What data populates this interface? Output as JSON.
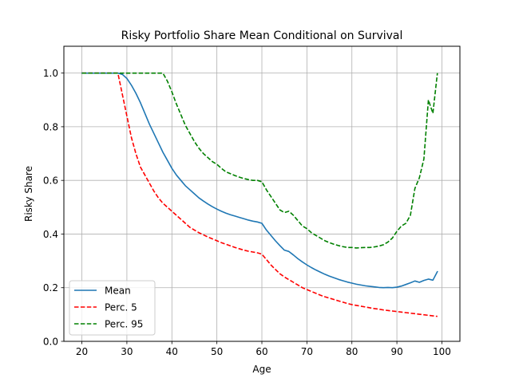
{
  "chart_data": {
    "type": "line",
    "title": "Risky Portfolio Share Mean Conditional on Survival",
    "xlabel": "Age",
    "ylabel": "Risky Share",
    "xlim": [
      16,
      104
    ],
    "ylim": [
      0.0,
      1.1
    ],
    "xticks": [
      20,
      30,
      40,
      50,
      60,
      70,
      80,
      90,
      100
    ],
    "yticks": [
      0.0,
      0.2,
      0.4,
      0.6,
      0.8,
      1.0
    ],
    "xtick_labels": [
      "20",
      "30",
      "40",
      "50",
      "60",
      "70",
      "80",
      "90",
      "100"
    ],
    "ytick_labels": [
      "0.0",
      "0.2",
      "0.4",
      "0.6",
      "0.8",
      "1.0"
    ],
    "grid": true,
    "legend_position": "lower-left",
    "series": [
      {
        "name": "Mean",
        "color": "#1f77b4",
        "style": "solid",
        "x": [
          20,
          21,
          22,
          23,
          24,
          25,
          26,
          27,
          28,
          29,
          30,
          31,
          32,
          33,
          34,
          35,
          36,
          37,
          38,
          39,
          40,
          41,
          42,
          43,
          44,
          45,
          46,
          47,
          48,
          49,
          50,
          51,
          52,
          53,
          54,
          55,
          56,
          57,
          58,
          59,
          60,
          61,
          62,
          63,
          64,
          65,
          66,
          67,
          68,
          69,
          70,
          71,
          72,
          73,
          74,
          75,
          76,
          77,
          78,
          79,
          80,
          81,
          82,
          83,
          84,
          85,
          86,
          87,
          88,
          89,
          90,
          91,
          92,
          93,
          94,
          95,
          96,
          97,
          98,
          99
        ],
        "values": [
          1.0,
          1.0,
          1.0,
          1.0,
          1.0,
          1.0,
          1.0,
          1.0,
          1.0,
          0.995,
          0.98,
          0.955,
          0.925,
          0.89,
          0.85,
          0.81,
          0.775,
          0.74,
          0.705,
          0.675,
          0.645,
          0.62,
          0.6,
          0.58,
          0.565,
          0.55,
          0.535,
          0.523,
          0.512,
          0.502,
          0.493,
          0.485,
          0.478,
          0.472,
          0.467,
          0.462,
          0.457,
          0.452,
          0.448,
          0.445,
          0.44,
          0.415,
          0.395,
          0.375,
          0.357,
          0.34,
          0.335,
          0.322,
          0.308,
          0.296,
          0.285,
          0.275,
          0.266,
          0.258,
          0.25,
          0.243,
          0.237,
          0.231,
          0.226,
          0.221,
          0.217,
          0.213,
          0.21,
          0.207,
          0.205,
          0.203,
          0.201,
          0.2,
          0.201,
          0.2,
          0.202,
          0.206,
          0.212,
          0.218,
          0.225,
          0.22,
          0.227,
          0.232,
          0.228,
          0.26
        ]
      },
      {
        "name": "Perc. 5",
        "color": "#ff0000",
        "style": "dashed",
        "x": [
          20,
          21,
          22,
          23,
          24,
          25,
          26,
          27,
          28,
          29,
          30,
          31,
          32,
          33,
          34,
          35,
          36,
          37,
          38,
          39,
          40,
          41,
          42,
          43,
          44,
          45,
          46,
          47,
          48,
          49,
          50,
          51,
          52,
          53,
          54,
          55,
          56,
          57,
          58,
          59,
          60,
          61,
          62,
          63,
          64,
          65,
          66,
          67,
          68,
          69,
          70,
          71,
          72,
          73,
          74,
          75,
          76,
          77,
          78,
          79,
          80,
          81,
          82,
          83,
          84,
          85,
          86,
          87,
          88,
          89,
          90,
          91,
          92,
          93,
          94,
          95,
          96,
          97,
          98,
          99
        ],
        "values": [
          1.0,
          1.0,
          1.0,
          1.0,
          1.0,
          1.0,
          1.0,
          1.0,
          1.0,
          0.92,
          0.84,
          0.76,
          0.7,
          0.65,
          0.62,
          0.59,
          0.56,
          0.535,
          0.515,
          0.5,
          0.485,
          0.47,
          0.455,
          0.44,
          0.425,
          0.415,
          0.405,
          0.397,
          0.389,
          0.382,
          0.375,
          0.368,
          0.362,
          0.356,
          0.35,
          0.345,
          0.34,
          0.336,
          0.333,
          0.33,
          0.325,
          0.305,
          0.285,
          0.268,
          0.252,
          0.24,
          0.23,
          0.22,
          0.21,
          0.2,
          0.193,
          0.186,
          0.179,
          0.172,
          0.166,
          0.161,
          0.156,
          0.151,
          0.146,
          0.141,
          0.137,
          0.134,
          0.131,
          0.128,
          0.125,
          0.122,
          0.12,
          0.117,
          0.115,
          0.113,
          0.111,
          0.109,
          0.107,
          0.105,
          0.103,
          0.101,
          0.099,
          0.097,
          0.095,
          0.093
        ]
      },
      {
        "name": "Perc. 95",
        "color": "#008000",
        "style": "dashed",
        "x": [
          20,
          21,
          22,
          23,
          24,
          25,
          26,
          27,
          28,
          29,
          30,
          31,
          32,
          33,
          34,
          35,
          36,
          37,
          38,
          39,
          40,
          41,
          42,
          43,
          44,
          45,
          46,
          47,
          48,
          49,
          50,
          51,
          52,
          53,
          54,
          55,
          56,
          57,
          58,
          59,
          60,
          61,
          62,
          63,
          64,
          65,
          66,
          67,
          68,
          69,
          70,
          71,
          72,
          73,
          74,
          75,
          76,
          77,
          78,
          79,
          80,
          81,
          82,
          83,
          84,
          85,
          86,
          87,
          88,
          89,
          90,
          91,
          92,
          93,
          94,
          95,
          96,
          97,
          98,
          99
        ],
        "values": [
          1.0,
          1.0,
          1.0,
          1.0,
          1.0,
          1.0,
          1.0,
          1.0,
          1.0,
          1.0,
          1.0,
          1.0,
          1.0,
          1.0,
          1.0,
          1.0,
          1.0,
          1.0,
          1.0,
          0.97,
          0.93,
          0.885,
          0.845,
          0.805,
          0.775,
          0.745,
          0.72,
          0.7,
          0.685,
          0.67,
          0.66,
          0.645,
          0.632,
          0.625,
          0.618,
          0.612,
          0.607,
          0.603,
          0.6,
          0.6,
          0.595,
          0.565,
          0.54,
          0.515,
          0.49,
          0.48,
          0.485,
          0.47,
          0.45,
          0.43,
          0.42,
          0.405,
          0.395,
          0.385,
          0.375,
          0.368,
          0.362,
          0.357,
          0.353,
          0.35,
          0.35,
          0.348,
          0.349,
          0.35,
          0.35,
          0.352,
          0.355,
          0.36,
          0.37,
          0.385,
          0.41,
          0.43,
          0.44,
          0.47,
          0.57,
          0.61,
          0.68,
          0.9,
          0.85,
          1.0
        ]
      }
    ]
  }
}
